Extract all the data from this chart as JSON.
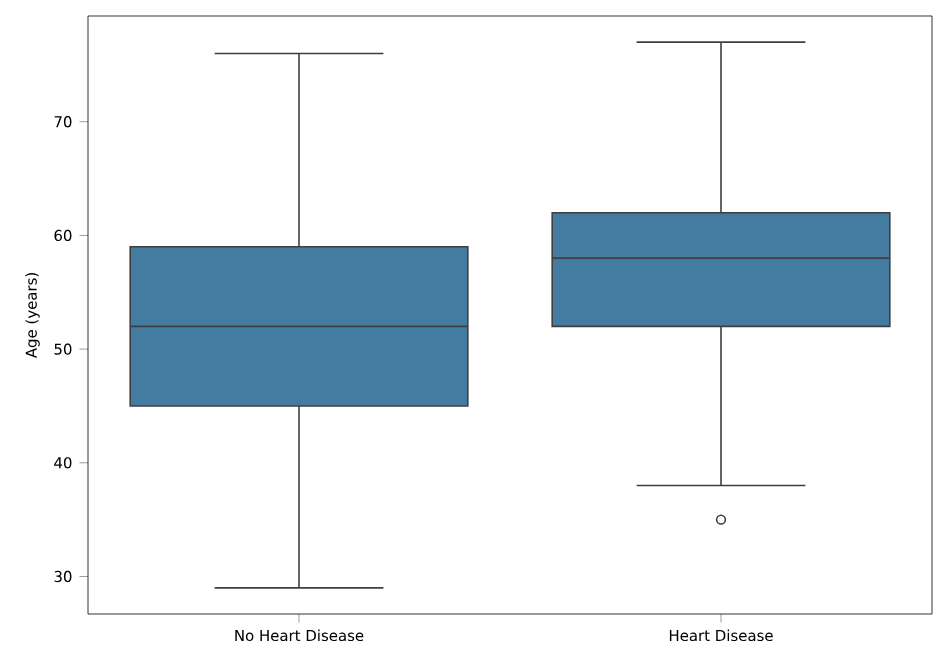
{
  "chart_data": {
    "type": "box",
    "ylabel": "Age (years)",
    "categories": [
      "No Heart Disease",
      "Heart Disease"
    ],
    "color": "#447ba1",
    "boxes": [
      {
        "low": 29,
        "q1": 45,
        "median": 52,
        "q3": 59,
        "high": 76
      },
      {
        "low": 38,
        "q1": 52,
        "median": 58,
        "q3": 62,
        "high": 77,
        "outliers": [
          35
        ]
      }
    ],
    "ylim": [
      26.7,
      79.3
    ],
    "yticks": [
      30,
      40,
      50,
      60,
      70
    ]
  }
}
